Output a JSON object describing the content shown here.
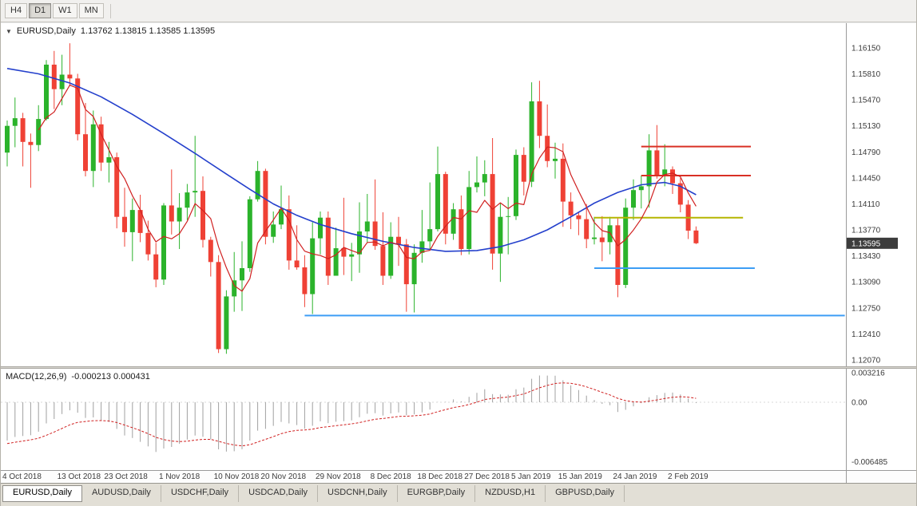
{
  "toolbar": {
    "buttons": [
      {
        "label": "H4",
        "active": false
      },
      {
        "label": "D1",
        "active": true
      },
      {
        "label": "W1",
        "active": false
      },
      {
        "label": "MN",
        "active": false
      }
    ]
  },
  "header": {
    "marker": "▼",
    "symbol": "EURUSD,Daily",
    "ohlc": "1.13762 1.13815 1.13585 1.13595"
  },
  "chart_data": {
    "type": "candlestick",
    "title": "EURUSD,Daily",
    "symbol": "EURUSD",
    "timeframe": "Daily",
    "ohlc_display": {
      "open": "1.13762",
      "high": "1.13815",
      "low": "1.13585",
      "close": "1.13595"
    },
    "current_price": "1.13595",
    "y_ticks": [
      "1.16150",
      "1.15810",
      "1.15470",
      "1.15130",
      "1.14790",
      "1.14450",
      "1.14110",
      "1.13770",
      "1.13430",
      "1.13090",
      "1.12750",
      "1.12410",
      "1.12070"
    ],
    "x_labels": [
      {
        "i": 0,
        "label": "4 Oct 2018"
      },
      {
        "i": 7,
        "label": "13 Oct 2018"
      },
      {
        "i": 13,
        "label": "23 Oct 2018"
      },
      {
        "i": 20,
        "label": "1 Nov 2018"
      },
      {
        "i": 27,
        "label": "10 Nov 2018"
      },
      {
        "i": 33,
        "label": "20 Nov 2018"
      },
      {
        "i": 40,
        "label": "29 Nov 2018"
      },
      {
        "i": 47,
        "label": "8 Dec 2018"
      },
      {
        "i": 53,
        "label": "18 Dec 2018"
      },
      {
        "i": 59,
        "label": "27 Dec 2018"
      },
      {
        "i": 65,
        "label": "5 Jan 2019"
      },
      {
        "i": 71,
        "label": "15 Jan 2019"
      },
      {
        "i": 78,
        "label": "24 Jan 2019"
      },
      {
        "i": 85,
        "label": "2 Feb 2019"
      }
    ],
    "candles": [
      [
        1.1478,
        1.152,
        1.146,
        1.1513
      ],
      [
        1.1513,
        1.155,
        1.1485,
        1.1523
      ],
      [
        1.1523,
        1.153,
        1.146,
        1.1492
      ],
      [
        1.1492,
        1.1503,
        1.1432,
        1.1488
      ],
      [
        1.1488,
        1.154,
        1.148,
        1.1522
      ],
      [
        1.1522,
        1.1599,
        1.152,
        1.1593
      ],
      [
        1.1593,
        1.1611,
        1.1535,
        1.1561
      ],
      [
        1.1561,
        1.1606,
        1.154,
        1.158
      ],
      [
        1.158,
        1.1621,
        1.1565,
        1.1575
      ],
      [
        1.1575,
        1.1581,
        1.1494,
        1.1502
      ],
      [
        1.1502,
        1.1543,
        1.1447,
        1.1454
      ],
      [
        1.1454,
        1.1533,
        1.1433,
        1.1515
      ],
      [
        1.1515,
        1.1525,
        1.1454,
        1.1465
      ],
      [
        1.1465,
        1.1492,
        1.1439,
        1.1472
      ],
      [
        1.1472,
        1.1478,
        1.1379,
        1.1394
      ],
      [
        1.1394,
        1.1432,
        1.1355,
        1.1374
      ],
      [
        1.1374,
        1.1418,
        1.1336,
        1.1403
      ],
      [
        1.1403,
        1.1423,
        1.1361,
        1.1373
      ],
      [
        1.1373,
        1.1389,
        1.1337,
        1.1345
      ],
      [
        1.1345,
        1.136,
        1.1302,
        1.1312
      ],
      [
        1.1312,
        1.1412,
        1.1305,
        1.1409
      ],
      [
        1.1409,
        1.1456,
        1.1371,
        1.1388
      ],
      [
        1.1388,
        1.1425,
        1.1352,
        1.1406
      ],
      [
        1.1406,
        1.1437,
        1.139,
        1.1426
      ],
      [
        1.1426,
        1.15,
        1.1394,
        1.1428
      ],
      [
        1.1428,
        1.1447,
        1.1354,
        1.1364
      ],
      [
        1.1364,
        1.1368,
        1.1316,
        1.1335
      ],
      [
        1.1335,
        1.1344,
        1.1216,
        1.1221
      ],
      [
        1.1221,
        1.1298,
        1.1215,
        1.129
      ],
      [
        1.129,
        1.1348,
        1.127,
        1.1311
      ],
      [
        1.1311,
        1.1362,
        1.1271,
        1.1327
      ],
      [
        1.1327,
        1.1421,
        1.1322,
        1.1417
      ],
      [
        1.1417,
        1.1467,
        1.1414,
        1.1454
      ],
      [
        1.1454,
        1.1457,
        1.1358,
        1.1368
      ],
      [
        1.1368,
        1.1401,
        1.136,
        1.1384
      ],
      [
        1.1384,
        1.1435,
        1.1378,
        1.1404
      ],
      [
        1.1404,
        1.1422,
        1.1325,
        1.1337
      ],
      [
        1.1337,
        1.1383,
        1.1325,
        1.1328
      ],
      [
        1.1328,
        1.1344,
        1.1276,
        1.1293
      ],
      [
        1.1293,
        1.1387,
        1.1267,
        1.1366
      ],
      [
        1.1366,
        1.1401,
        1.1345,
        1.1393
      ],
      [
        1.1393,
        1.1401,
        1.1305,
        1.1317
      ],
      [
        1.1317,
        1.138,
        1.1317,
        1.1353
      ],
      [
        1.1353,
        1.1419,
        1.1318,
        1.1342
      ],
      [
        1.1342,
        1.136,
        1.131,
        1.1345
      ],
      [
        1.1345,
        1.1413,
        1.1321,
        1.1375
      ],
      [
        1.1375,
        1.1424,
        1.136,
        1.1388
      ],
      [
        1.1388,
        1.1443,
        1.1351,
        1.1356
      ],
      [
        1.1356,
        1.14,
        1.1305,
        1.1317
      ],
      [
        1.1317,
        1.1387,
        1.1313,
        1.1368
      ],
      [
        1.1368,
        1.1394,
        1.133,
        1.1358
      ],
      [
        1.1358,
        1.1365,
        1.127,
        1.1306
      ],
      [
        1.1306,
        1.1358,
        1.1269,
        1.1347
      ],
      [
        1.1347,
        1.1403,
        1.1334,
        1.1362
      ],
      [
        1.1362,
        1.1439,
        1.1351,
        1.1378
      ],
      [
        1.1378,
        1.1486,
        1.1375,
        1.145
      ],
      [
        1.145,
        1.1453,
        1.1358,
        1.1372
      ],
      [
        1.1372,
        1.1412,
        1.1364,
        1.1404
      ],
      [
        1.1404,
        1.1422,
        1.1344,
        1.1352
      ],
      [
        1.1352,
        1.1454,
        1.1345,
        1.1433
      ],
      [
        1.1433,
        1.1473,
        1.1426,
        1.1439
      ],
      [
        1.1439,
        1.1468,
        1.1421,
        1.145
      ],
      [
        1.145,
        1.1497,
        1.1325,
        1.1346
      ],
      [
        1.1346,
        1.1412,
        1.1309,
        1.1394
      ],
      [
        1.1394,
        1.142,
        1.1345,
        1.1395
      ],
      [
        1.1395,
        1.1482,
        1.139,
        1.1475
      ],
      [
        1.1475,
        1.1485,
        1.1422,
        1.144
      ],
      [
        1.144,
        1.157,
        1.1433,
        1.1545
      ],
      [
        1.1545,
        1.1572,
        1.1484,
        1.15
      ],
      [
        1.15,
        1.1541,
        1.1459,
        1.1467
      ],
      [
        1.1467,
        1.1491,
        1.1444,
        1.147
      ],
      [
        1.147,
        1.149,
        1.1381,
        1.1414
      ],
      [
        1.1414,
        1.1426,
        1.1378,
        1.1396
      ],
      [
        1.1396,
        1.1401,
        1.137,
        1.1391
      ],
      [
        1.1391,
        1.1411,
        1.1353,
        1.1365
      ],
      [
        1.1365,
        1.1394,
        1.1358,
        1.1367
      ],
      [
        1.1367,
        1.1395,
        1.1336,
        1.1361
      ],
      [
        1.1361,
        1.1394,
        1.1345,
        1.1383
      ],
      [
        1.1383,
        1.1392,
        1.1289,
        1.1305
      ],
      [
        1.1305,
        1.1418,
        1.1301,
        1.1406
      ],
      [
        1.1406,
        1.1443,
        1.139,
        1.1429
      ],
      [
        1.1429,
        1.1448,
        1.1405,
        1.1434
      ],
      [
        1.1434,
        1.1502,
        1.1406,
        1.1481
      ],
      [
        1.1481,
        1.1514,
        1.1444,
        1.1447
      ],
      [
        1.1447,
        1.1489,
        1.1434,
        1.1456
      ],
      [
        1.1456,
        1.146,
        1.1424,
        1.1438
      ],
      [
        1.1438,
        1.1445,
        1.14,
        1.141
      ],
      [
        1.141,
        1.1416,
        1.1365,
        1.1376
      ],
      [
        1.13762,
        1.13815,
        1.13585,
        1.13595
      ]
    ],
    "ma_slow_waypoints": [
      [
        0,
        1.1588
      ],
      [
        4,
        1.1581
      ],
      [
        8,
        1.1569
      ],
      [
        12,
        1.1551
      ],
      [
        16,
        1.1528
      ],
      [
        20,
        1.1503
      ],
      [
        24,
        1.1477
      ],
      [
        28,
        1.145
      ],
      [
        31,
        1.143
      ],
      [
        34,
        1.1411
      ],
      [
        37,
        1.1396
      ],
      [
        40,
        1.1384
      ],
      [
        44,
        1.1372
      ],
      [
        48,
        1.1362
      ],
      [
        52,
        1.1354
      ],
      [
        56,
        1.1349
      ],
      [
        60,
        1.135
      ],
      [
        63,
        1.1355
      ],
      [
        66,
        1.1364
      ],
      [
        69,
        1.1377
      ],
      [
        72,
        1.1394
      ],
      [
        75,
        1.1412
      ],
      [
        78,
        1.1426
      ],
      [
        81,
        1.1436
      ],
      [
        84,
        1.1439
      ],
      [
        86,
        1.1434
      ],
      [
        88,
        1.1423
      ]
    ],
    "ma_fast_period": 5,
    "h_lines": [
      {
        "price": 1.1486,
        "i1": 81,
        "i2": 95,
        "color": "#d93025",
        "width": 2
      },
      {
        "price": 1.1448,
        "i1": 81,
        "i2": 95,
        "color": "#d93025",
        "width": 2
      },
      {
        "price": 1.1393,
        "i1": 75,
        "i2": 94,
        "color": "#b5b500",
        "width": 2
      },
      {
        "price": 1.1327,
        "i1": 75,
        "i2": 95.5,
        "color": "#3d9df5",
        "width": 2
      },
      {
        "price": 1.1265,
        "i1": 38,
        "i2": 107,
        "color": "#3d9df5",
        "width": 2
      }
    ],
    "macd": {
      "title": "MACD(12,26,9)",
      "values_text": "-0.000213 0.000431",
      "main_value": "-0.000213",
      "signal_value": "0.000431",
      "fast": 12,
      "slow": 26,
      "signal": 9,
      "seed_offset": 0.0045,
      "seed_signal": -0.0045,
      "ticks": [
        0.003216,
        0,
        -0.006485
      ],
      "tick_labels": [
        "0.003216",
        "0.00",
        "-0.006485"
      ]
    }
  },
  "tabs": {
    "items": [
      {
        "label": "EURUSD,Daily",
        "active": true
      },
      {
        "label": "AUDUSD,Daily",
        "active": false
      },
      {
        "label": "USDCHF,Daily",
        "active": false
      },
      {
        "label": "USDCAD,Daily",
        "active": false
      },
      {
        "label": "USDCNH,Daily",
        "active": false
      },
      {
        "label": "EURGBP,Daily",
        "active": false
      },
      {
        "label": "NZDUSD,H1",
        "active": false
      },
      {
        "label": "GBPUSD,Daily",
        "active": false
      }
    ]
  },
  "colors": {
    "bull": "#2bb32b",
    "bear": "#ef4135",
    "ma_slow": "#2440cc",
    "ma_fast": "#d02020",
    "signal": "#d02020",
    "histogram": "#a0a0a0",
    "badge_bg": "#3c3c3c",
    "axis_text": "#3a3a3a",
    "background": "#ffffff"
  }
}
